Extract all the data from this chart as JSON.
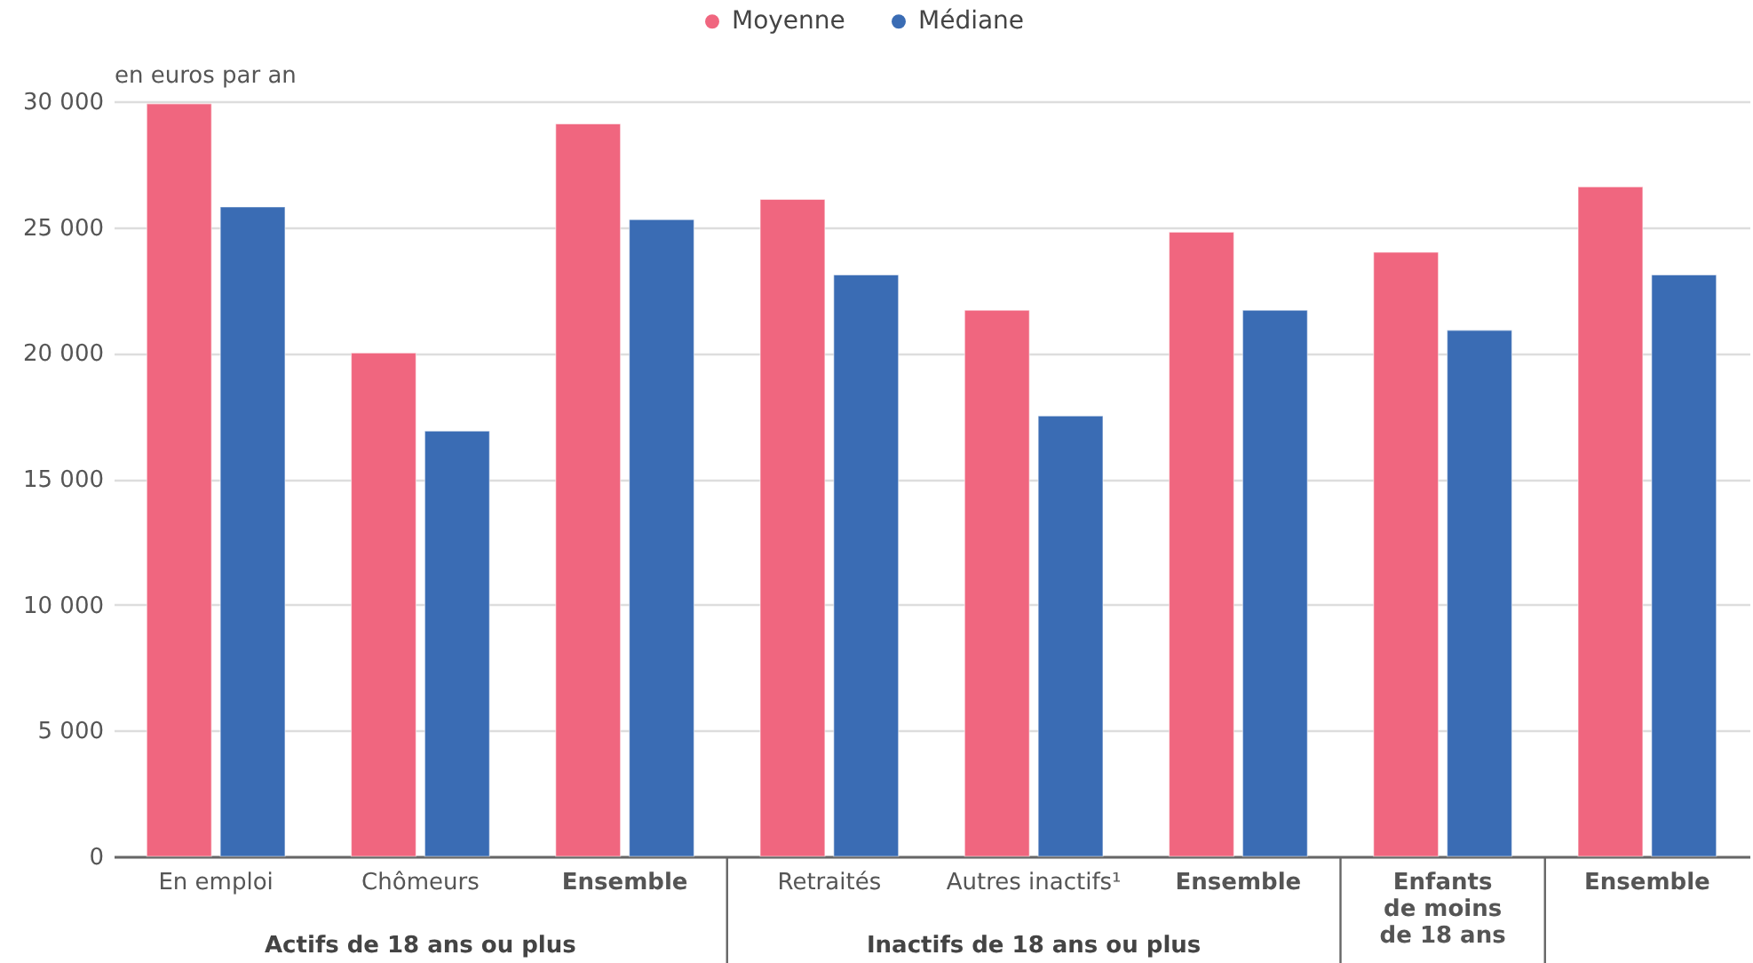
{
  "chart_data": {
    "type": "bar",
    "ylabel": "en euros par an",
    "categories": [
      "En emploi",
      "Chômeurs",
      "Ensemble",
      "Retraités",
      "Autres inactifs¹",
      "Ensemble",
      "Enfants de moins de 18 ans",
      "Ensemble"
    ],
    "series": [
      {
        "name": "Moyenne",
        "color": "#f0667f",
        "values": [
          29900,
          20000,
          29100,
          26100,
          21700,
          24800,
          24000,
          26600
        ]
      },
      {
        "name": "Médiane",
        "color": "#3a6cb4",
        "values": [
          25800,
          16900,
          25300,
          23100,
          17500,
          21700,
          20900,
          23100
        ]
      }
    ],
    "ylim": [
      0,
      30000
    ],
    "yticks": [
      0,
      {
        "value": 5000,
        "label": "5 000"
      },
      {
        "value": 10000,
        "label": "10 000"
      },
      {
        "value": 15000,
        "label": "15 000"
      },
      {
        "value": 20000,
        "label": "20 000"
      },
      {
        "value": 25000,
        "label": "25 000"
      },
      {
        "value": 30000,
        "label": "30 000"
      }
    ],
    "grid": "y",
    "legend": "top",
    "marker": "circle",
    "annotations": [
      "Actifs de 18 ans ou plus",
      "Inactifs de 18 ans ou plus"
    ]
  }
}
